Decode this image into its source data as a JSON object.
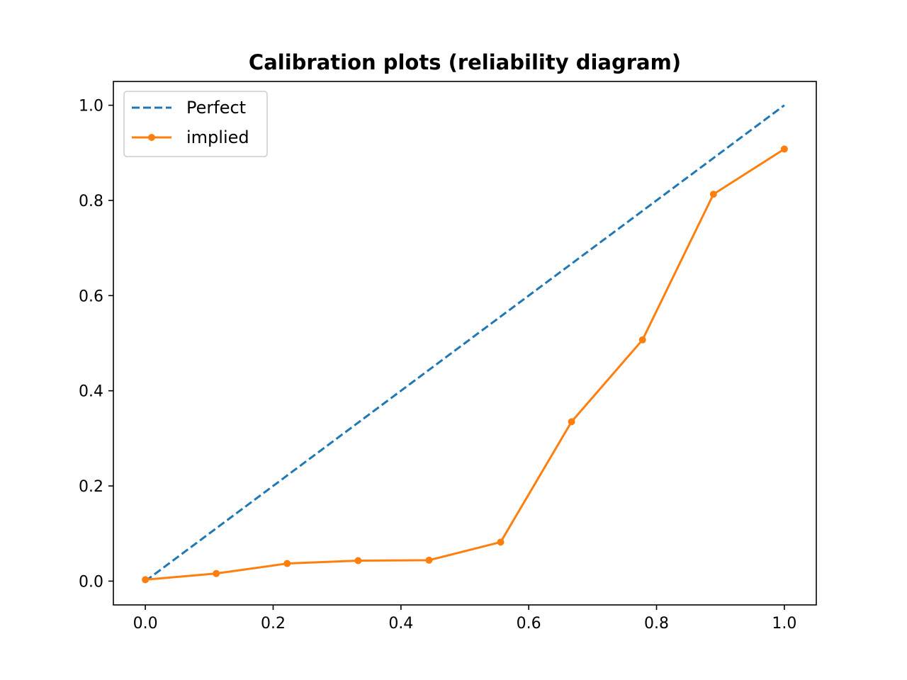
{
  "chart_data": {
    "type": "line",
    "title": "Calibration plots (reliability diagram)",
    "xlabel": "",
    "ylabel": "",
    "xlim": [
      -0.05,
      1.05
    ],
    "ylim": [
      -0.05,
      1.05
    ],
    "xticks": [
      0.0,
      0.2,
      0.4,
      0.6,
      0.8,
      1.0
    ],
    "yticks": [
      0.0,
      0.2,
      0.4,
      0.6,
      0.8,
      1.0
    ],
    "xtick_labels": [
      "0.0",
      "0.2",
      "0.4",
      "0.6",
      "0.8",
      "1.0"
    ],
    "ytick_labels": [
      "0.0",
      "0.2",
      "0.4",
      "0.6",
      "0.8",
      "1.0"
    ],
    "grid": false,
    "legend_position": "top-left",
    "series": [
      {
        "name": "Perfect",
        "style": "dashed",
        "marker": "none",
        "color": "#1f77b4",
        "x": [
          0.0,
          1.0
        ],
        "y": [
          0.0,
          1.0
        ]
      },
      {
        "name": "implied",
        "style": "solid",
        "marker": "dot",
        "color": "#ff7f0e",
        "x": [
          0.0,
          0.111,
          0.222,
          0.333,
          0.444,
          0.556,
          0.667,
          0.778,
          0.889,
          1.0
        ],
        "y": [
          0.003,
          0.016,
          0.037,
          0.043,
          0.044,
          0.082,
          0.335,
          0.507,
          0.813,
          0.908
        ]
      }
    ]
  }
}
